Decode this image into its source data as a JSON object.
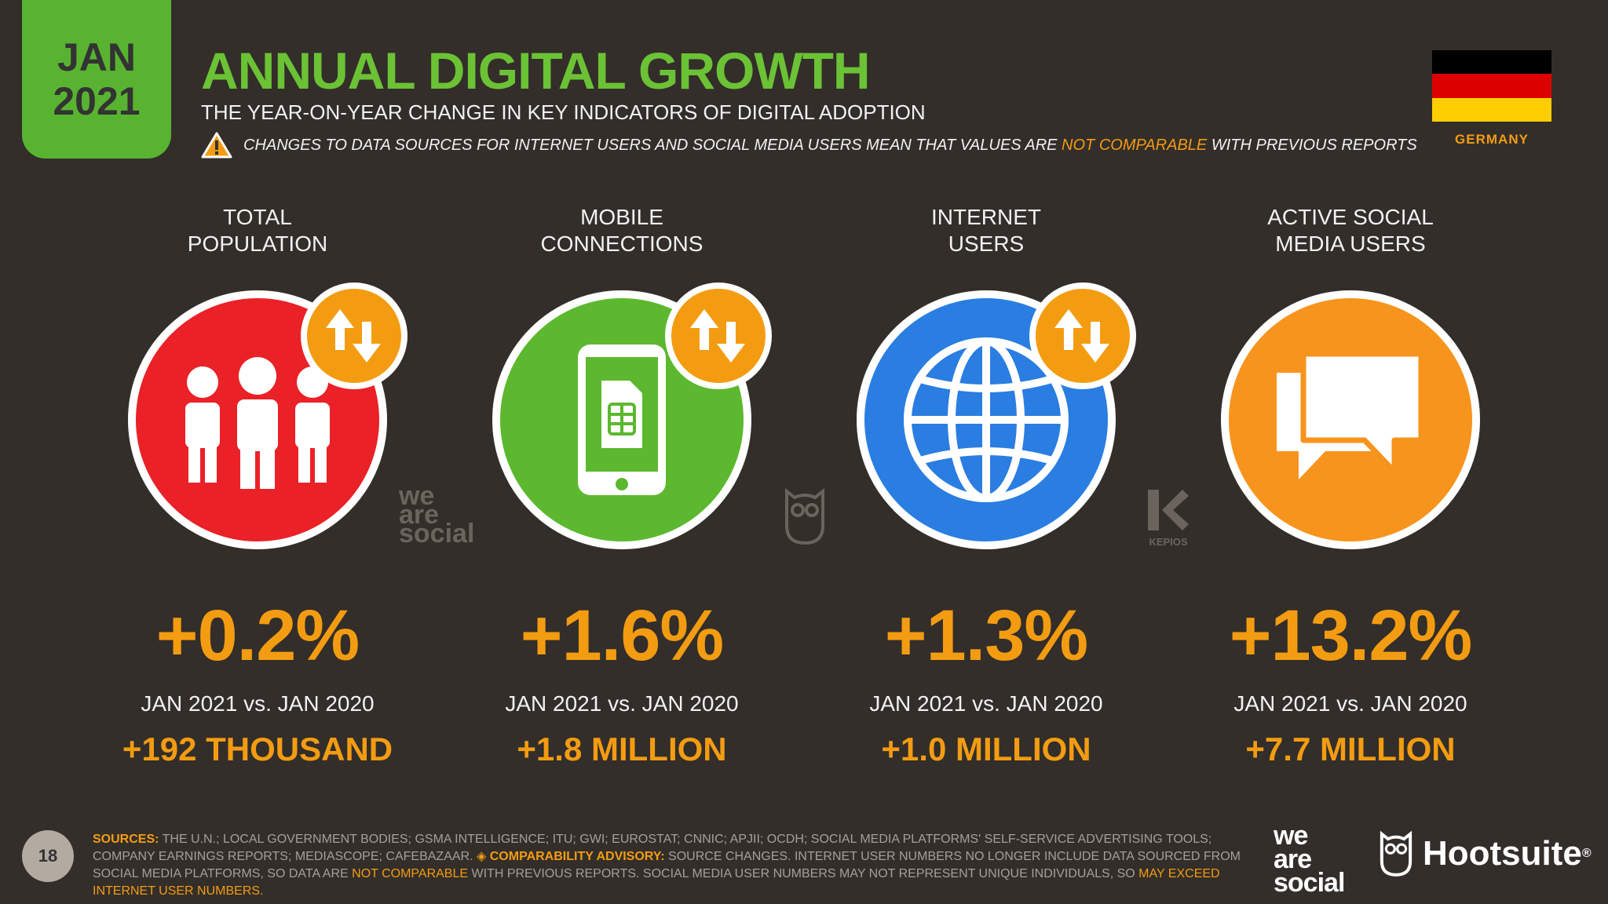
{
  "header": {
    "date_month": "JAN",
    "date_year": "2021",
    "title": "ANNUAL DIGITAL GROWTH",
    "subtitle": "THE YEAR-ON-YEAR CHANGE IN KEY INDICATORS OF DIGITAL ADOPTION",
    "notice_pre": "CHANGES TO DATA SOURCES FOR INTERNET USERS AND SOCIAL MEDIA USERS MEAN THAT VALUES ARE",
    "notice_hl": "NOT COMPARABLE",
    "notice_post": "WITH PREVIOUS REPORTS",
    "country": "GERMANY"
  },
  "colors": {
    "accent_green": "#6bc235",
    "accent_orange": "#f39c12",
    "population_red": "#ea2127",
    "mobile_green": "#5cb82e",
    "internet_blue": "#2a7de1",
    "social_orange": "#f7941d",
    "flag_black": "#000000",
    "flag_red": "#dd0000",
    "flag_gold": "#ffce00"
  },
  "indicators": [
    {
      "label_line1": "TOTAL",
      "label_line2": "POPULATION",
      "icon": "people-icon",
      "change_pct": "+0.2%",
      "comparison": "JAN 2021 vs. JAN 2020",
      "absolute": "+192 THOUSAND"
    },
    {
      "label_line1": "MOBILE",
      "label_line2": "CONNECTIONS",
      "icon": "mobile-phone-icon",
      "change_pct": "+1.6%",
      "comparison": "JAN 2021 vs. JAN 2020",
      "absolute": "+1.8 MILLION"
    },
    {
      "label_line1": "INTERNET",
      "label_line2": "USERS",
      "icon": "globe-icon",
      "change_pct": "+1.3%",
      "comparison": "JAN 2021 vs. JAN 2020",
      "absolute": "+1.0 MILLION"
    },
    {
      "label_line1": "ACTIVE SOCIAL",
      "label_line2": "MEDIA USERS",
      "icon": "chat-bubbles-icon",
      "change_pct": "+13.2%",
      "comparison": "JAN 2021 vs. JAN 2020",
      "absolute": "+7.7 MILLION"
    }
  ],
  "watermarks": {
    "was_line1": "we",
    "was_line2": "are",
    "was_line3": "social",
    "kepios": "KEPIOS"
  },
  "footer": {
    "page_number": "18",
    "sources_key": "SOURCES:",
    "sources_text": "THE U.N.; LOCAL GOVERNMENT BODIES; GSMA INTELLIGENCE; ITU; GWI; EUROSTAT; CNNIC; APJII; OCDH; SOCIAL MEDIA PLATFORMS' SELF-SERVICE ADVERTISING TOOLS; COMPANY EARNINGS REPORTS; MEDIASCOPE; CAFEBAZAAR.",
    "advisory_key": "◈ COMPARABILITY ADVISORY:",
    "advisory_text1": "SOURCE CHANGES. INTERNET USER NUMBERS NO LONGER INCLUDE DATA SOURCED FROM SOCIAL MEDIA PLATFORMS, SO DATA ARE",
    "advisory_hl1": "NOT COMPARABLE",
    "advisory_text2": "WITH PREVIOUS REPORTS. SOCIAL MEDIA USER NUMBERS MAY NOT REPRESENT UNIQUE INDIVIDUALS, SO",
    "advisory_hl2": "MAY EXCEED INTERNET USER NUMBERS.",
    "brand_was_line1": "we",
    "brand_was_line2": "are",
    "brand_was_line3": "social",
    "brand_hootsuite": "Hootsuite",
    "brand_reg": "®"
  }
}
